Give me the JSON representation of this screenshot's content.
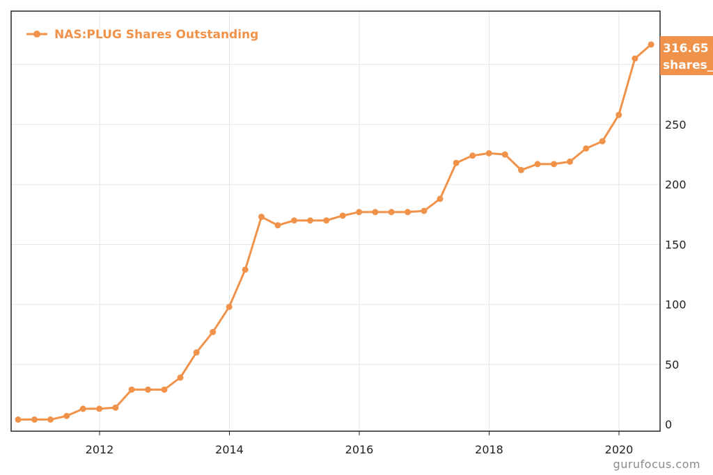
{
  "chart_data": {
    "type": "line",
    "legend": "NAS:PLUG Shares Outstanding",
    "legend_position": "top-left",
    "x_ticks": [
      "2012",
      "2014",
      "2016",
      "2018",
      "2020"
    ],
    "y_ticks": [
      "0",
      "50",
      "100",
      "150",
      "200",
      "250"
    ],
    "ylim": [
      0,
      350
    ],
    "xlim": [
      "2010-09",
      "2020-12"
    ],
    "grid": true,
    "y_axis_side": "right",
    "last_value_badge": {
      "value": "316.65",
      "unit": "shares_"
    },
    "series": [
      {
        "name": "NAS:PLUG Shares Outstanding",
        "color": "#f0924a",
        "x": [
          "2010-09-30",
          "2010-12-31",
          "2011-03-31",
          "2011-06-30",
          "2011-09-30",
          "2011-12-31",
          "2012-03-31",
          "2012-06-30",
          "2012-09-30",
          "2012-12-31",
          "2013-03-31",
          "2013-06-30",
          "2013-09-30",
          "2013-12-31",
          "2014-03-31",
          "2014-06-30",
          "2014-09-30",
          "2014-12-31",
          "2015-03-31",
          "2015-06-30",
          "2015-09-30",
          "2015-12-31",
          "2016-03-31",
          "2016-06-30",
          "2016-09-30",
          "2016-12-31",
          "2017-03-31",
          "2017-06-30",
          "2017-09-30",
          "2017-12-31",
          "2018-03-31",
          "2018-06-30",
          "2018-09-30",
          "2018-12-31",
          "2019-03-31",
          "2019-06-30",
          "2019-09-30",
          "2019-12-31",
          "2020-03-31",
          "2020-06-30"
        ],
        "values": [
          4,
          4,
          4,
          7,
          13,
          13,
          14,
          29,
          29,
          29,
          39,
          60,
          77,
          98,
          129,
          173,
          166,
          170,
          170,
          170,
          174,
          177,
          177,
          177,
          177,
          178,
          188,
          218,
          224,
          226,
          225,
          212,
          217,
          217,
          219,
          230,
          236,
          258,
          305,
          316.65
        ]
      }
    ]
  },
  "watermark": "gurufocus.com"
}
